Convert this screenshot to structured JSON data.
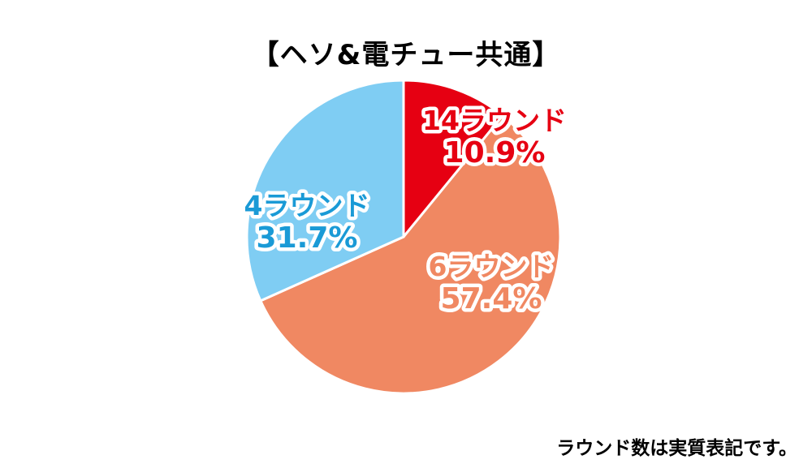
{
  "chart_data": {
    "type": "pie",
    "title": "【ヘソ&電チュー共通】",
    "slices": [
      {
        "category": "14ラウンド",
        "value": 10.9,
        "value_label": "10.9%",
        "color": "#e60012",
        "label_color": "#e60012"
      },
      {
        "category": "6ラウンド",
        "value": 57.4,
        "value_label": "57.4%",
        "color": "#f08862",
        "label_color": "#f08862"
      },
      {
        "category": "4ラウンド",
        "value": 31.7,
        "value_label": "31.7%",
        "color": "#7fcdf3",
        "label_color": "#1a9ad6"
      }
    ]
  },
  "footnote": "ラウンド数は実質表記です。"
}
